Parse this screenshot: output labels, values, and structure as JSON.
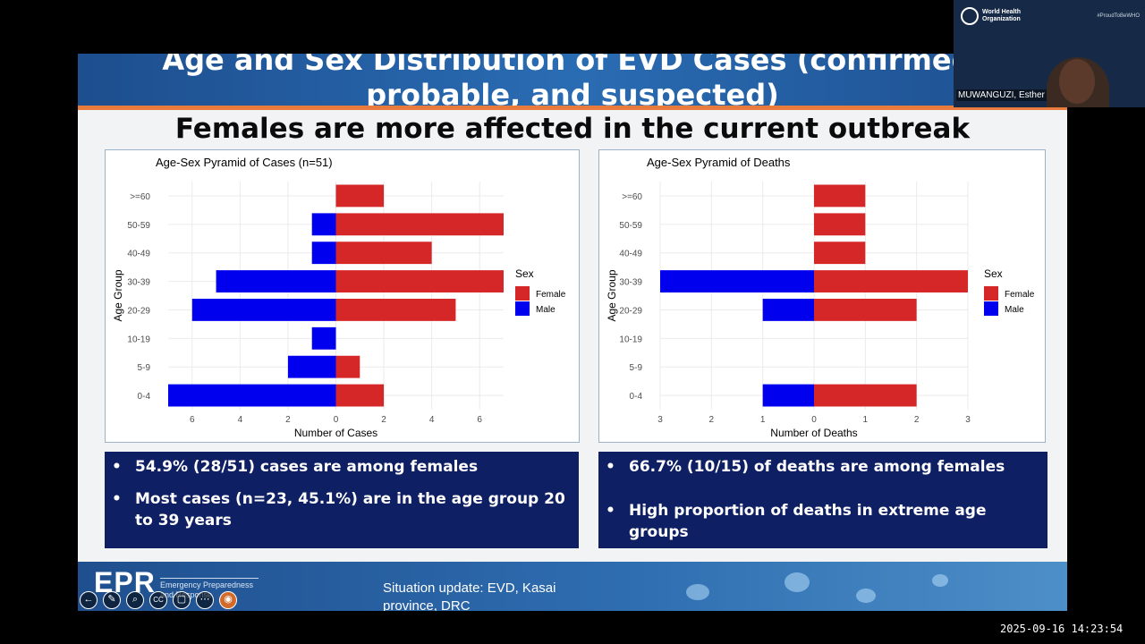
{
  "slide": {
    "title_line1": "Age and Sex Distribution of EVD Cases (confirmed,",
    "title_line2": "probable, and suspected)",
    "headline": "Females are more affected in the current outbreak"
  },
  "chart_data": [
    {
      "type": "bar",
      "orientation": "horizontal-pyramid",
      "title": "Age-Sex Pyramid of Cases (n=51)",
      "xlabel": "Number of Cases",
      "ylabel": "Age Group",
      "categories": [
        "0-4",
        "5-9",
        "10-19",
        "20-29",
        "30-39",
        "40-49",
        "50-59",
        ">=60"
      ],
      "series": [
        {
          "name": "Female",
          "color": "#d62728",
          "values": [
            2,
            1,
            0,
            5,
            7,
            4,
            7,
            2
          ]
        },
        {
          "name": "Male",
          "color": "#0000ee",
          "values": [
            7,
            2,
            1,
            6,
            5,
            1,
            1,
            0
          ]
        }
      ],
      "xlim": [
        -7,
        7
      ],
      "xticks": [
        -6,
        -4,
        -2,
        0,
        2,
        4,
        6
      ],
      "xtick_labels": [
        "6",
        "4",
        "2",
        "0",
        "2",
        "4",
        "6"
      ],
      "legend_title": "Sex",
      "legend_position": "right",
      "grid": true
    },
    {
      "type": "bar",
      "orientation": "horizontal-pyramid",
      "title": "Age-Sex Pyramid of Deaths",
      "xlabel": "Number of Deaths",
      "ylabel": "Age Group",
      "categories": [
        "0-4",
        "5-9",
        "10-19",
        "20-29",
        "30-39",
        "40-49",
        "50-59",
        ">=60"
      ],
      "series": [
        {
          "name": "Female",
          "color": "#d62728",
          "values": [
            2,
            0,
            0,
            2,
            3,
            1,
            1,
            1
          ]
        },
        {
          "name": "Male",
          "color": "#0000ee",
          "values": [
            1,
            0,
            0,
            1,
            3,
            0,
            0,
            0
          ]
        }
      ],
      "xlim": [
        -3,
        3
      ],
      "xticks": [
        -3,
        -2,
        -1,
        0,
        1,
        2,
        3
      ],
      "xtick_labels": [
        "3",
        "2",
        "1",
        "0",
        "1",
        "2",
        "3"
      ],
      "legend_title": "Sex",
      "legend_position": "right",
      "grid": true
    }
  ],
  "findings_left": [
    "54.9% (28/51) cases are among females",
    "Most cases (n=23, 45.1%) are in the age group 20 to 39 years"
  ],
  "findings_right": [
    "66.7% (10/15) of deaths are among females",
    "High proportion of deaths in extreme age groups"
  ],
  "bullet": "•",
  "footer": {
    "logo": "EPR",
    "logo_text": "Emergency Preparedness and Response",
    "situation": "Situation update: EVD, Kasai province, DRC"
  },
  "controls": [
    {
      "icon": "back-arrow-icon",
      "glyph": "←"
    },
    {
      "icon": "pen-icon",
      "glyph": "✎"
    },
    {
      "icon": "zoom-icon",
      "glyph": "⌕"
    },
    {
      "icon": "captions-icon",
      "glyph": "CC"
    },
    {
      "icon": "screen-icon",
      "glyph": "▢"
    },
    {
      "icon": "more-icon",
      "glyph": "⋯"
    },
    {
      "icon": "laser-pointer-icon",
      "glyph": "◉"
    }
  ],
  "video_tile": {
    "org": "World Health Organization",
    "tag": "#ProudToBeWHO",
    "speaker": "MUWANGUZI, Esther"
  },
  "timestamp": "2025-09-16 14:23:54"
}
